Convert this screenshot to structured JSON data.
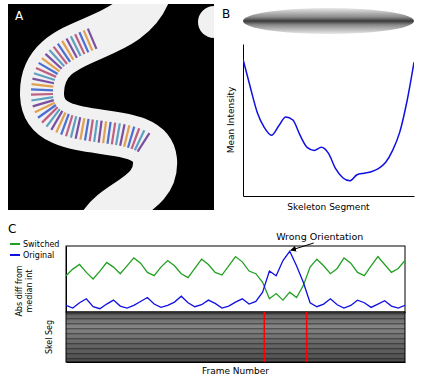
{
  "chart_data": [
    {
      "type": "image",
      "label": "A"
    },
    {
      "type": "line",
      "label": "B",
      "xlabel": "Skeleton Segment",
      "ylabel": "Mean Intensity",
      "x": [
        0,
        2,
        4,
        6,
        8,
        10,
        12,
        14,
        16,
        18,
        20,
        22,
        24,
        26,
        28,
        30,
        32,
        34,
        36,
        38,
        40,
        42,
        44,
        46,
        48
      ],
      "values": [
        90,
        72,
        55,
        45,
        40,
        46,
        52,
        50,
        40,
        32,
        30,
        32,
        28,
        18,
        12,
        10,
        14,
        15,
        16,
        18,
        22,
        30,
        42,
        62,
        88
      ],
      "color": "#1010e0",
      "xlim": [
        0,
        48
      ],
      "ylim": [
        0,
        100
      ],
      "xticks": [],
      "yticks": [],
      "tick_labels": false
    },
    {
      "type": "line",
      "label": "C",
      "ylabel": "Abs diff from median int",
      "x": [
        0,
        4,
        8,
        12,
        16,
        20,
        24,
        28,
        32,
        36,
        40,
        44,
        48,
        52,
        56,
        60,
        64,
        68,
        72,
        76,
        80,
        84,
        88,
        92,
        96,
        100,
        104,
        108,
        112,
        116,
        120,
        124,
        128,
        132,
        136,
        140,
        144,
        148,
        152,
        156,
        160,
        164,
        168,
        172,
        176,
        180,
        184,
        188,
        192,
        196,
        200
      ],
      "series": [
        {
          "name": "Switched",
          "color": "#22a022",
          "values": [
            55,
            65,
            72,
            60,
            50,
            62,
            75,
            68,
            58,
            70,
            82,
            74,
            60,
            55,
            68,
            78,
            70,
            58,
            52,
            66,
            80,
            72,
            60,
            56,
            70,
            84,
            76,
            62,
            58,
            45,
            20,
            28,
            18,
            30,
            22,
            40,
            68,
            80,
            70,
            58,
            66,
            82,
            74,
            60,
            55,
            70,
            84,
            72,
            60,
            66,
            78
          ]
        },
        {
          "name": "Original",
          "color": "#1010e0",
          "values": [
            10,
            6,
            14,
            20,
            8,
            5,
            12,
            18,
            9,
            6,
            10,
            16,
            22,
            12,
            7,
            10,
            15,
            24,
            14,
            8,
            11,
            18,
            13,
            6,
            9,
            15,
            20,
            12,
            16,
            30,
            62,
            55,
            78,
            92,
            70,
            45,
            14,
            8,
            12,
            20,
            11,
            6,
            10,
            18,
            14,
            7,
            12,
            17,
            9,
            6,
            10
          ]
        }
      ],
      "xlim": [
        0,
        200
      ],
      "ylim": [
        0,
        100
      ],
      "xticks": [],
      "yticks": [],
      "tick_labels": false,
      "legend": "upper left",
      "annotations": [
        {
          "text": "Wrong Orientation",
          "x": 132,
          "y": 92
        }
      ]
    },
    {
      "type": "image",
      "ylabel": "Skel Seg",
      "xlabel": "Frame Number",
      "xlim": [
        0,
        200
      ],
      "marked_frames": [
        117,
        142
      ],
      "color": "#ff0000"
    }
  ]
}
